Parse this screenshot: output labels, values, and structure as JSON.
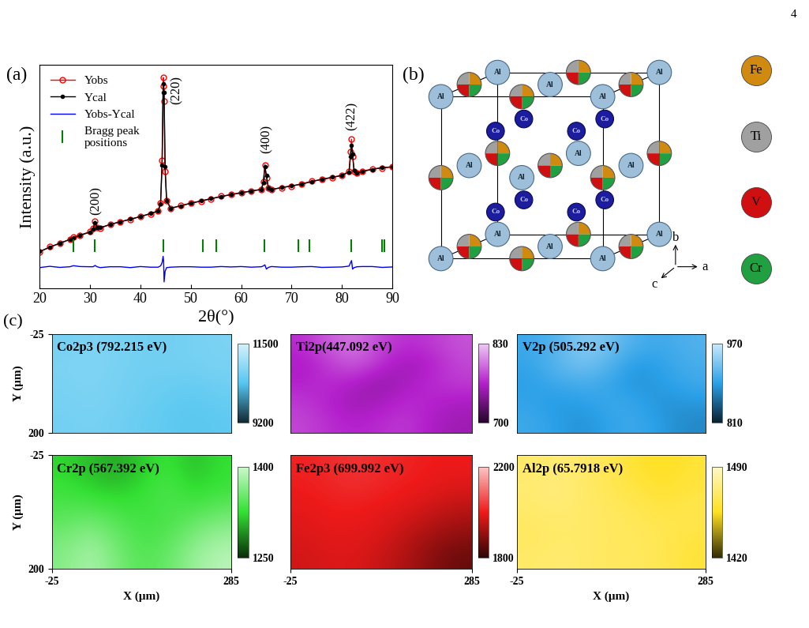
{
  "page": "4",
  "panel_labels": [
    "(a)",
    "(b)",
    "(c)"
  ],
  "chart_data": [
    {
      "type": "line",
      "xlabel": "2θ(°)",
      "ylabel": "Intensity (a.u.)",
      "xlim": [
        20,
        90
      ],
      "xticks": [
        20,
        30,
        40,
        50,
        60,
        70,
        80,
        90
      ],
      "ylim": [
        0,
        105
      ],
      "tick_labels": "x",
      "legend": "upper left",
      "x": [
        20,
        22,
        24,
        26,
        26.7,
        28,
        30,
        30.6,
        31,
        31.4,
        32,
        34,
        36,
        38,
        40,
        42,
        43.5,
        44.0,
        44.3,
        44.5,
        44.6,
        44.7,
        44.9,
        45.2,
        46,
        48,
        50,
        52,
        54,
        56,
        58,
        60,
        62,
        64,
        64.4,
        64.7,
        65.0,
        65.4,
        66,
        68,
        70,
        72,
        74,
        76,
        78,
        80,
        81.4,
        81.7,
        81.9,
        82.1,
        82.4,
        83,
        84,
        86,
        88,
        90
      ],
      "series": [
        {
          "name": "Yobs",
          "color": "#ff0000",
          "marker": "circle",
          "line_style": "solid",
          "values": [
            17,
            19.5,
            21,
            23,
            24.2,
            25,
            26.5,
            28,
            31.5,
            28.5,
            28.2,
            30,
            31.3,
            32.2,
            33.8,
            35,
            36.2,
            40,
            60,
            95,
            99,
            88,
            55,
            41,
            37.5,
            38.8,
            40,
            40.9,
            42,
            43.2,
            44,
            45,
            45.6,
            46.5,
            50,
            58,
            52,
            47,
            46.5,
            47.2,
            48,
            49,
            50.3,
            51,
            52,
            53,
            55,
            64,
            70,
            62,
            55,
            54.2,
            55,
            56,
            56.5,
            57
          ]
        },
        {
          "name": "Ycal",
          "color": "#000000",
          "marker": "dot",
          "line_style": "solid",
          "values": [
            17.3,
            19.2,
            21.2,
            22.9,
            23.6,
            24.8,
            26.4,
            27.9,
            30.8,
            28.4,
            28.5,
            29.9,
            31.2,
            32.5,
            33.6,
            35.1,
            36.3,
            39.5,
            58,
            92,
            96,
            92,
            57,
            41.3,
            37.6,
            38.7,
            39.9,
            41,
            42.1,
            43,
            44,
            44.8,
            45.7,
            46.4,
            49.5,
            57,
            53,
            47.2,
            46.3,
            47.3,
            48.1,
            48.9,
            50.1,
            51.2,
            52.1,
            53,
            54.6,
            62,
            67,
            63,
            55.3,
            54.1,
            54.8,
            55.8,
            56.7,
            57
          ]
        },
        {
          "name": "Yobs-Ycal",
          "color": "#0000ff",
          "line_style": "solid",
          "values": [
            9.7,
            10.3,
            9.8,
            10.1,
            10.6,
            10.2,
            10.1,
            10.1,
            10.7,
            10.1,
            9.7,
            10.1,
            10.1,
            9.7,
            10.2,
            9.9,
            9.9,
            10.5,
            12,
            15,
            13,
            3,
            8,
            9.7,
            9.9,
            10.1,
            10.1,
            9.9,
            9.9,
            10.2,
            10,
            10.2,
            9.9,
            10.1,
            10.5,
            11,
            9,
            9.8,
            10.2,
            9.9,
            9.9,
            10.1,
            10.2,
            9.8,
            9.9,
            10,
            10.4,
            12,
            13,
            9,
            9.7,
            10.1,
            10.2,
            10.2,
            9.8,
            10
          ]
        }
      ],
      "bragg_peaks": {
        "name": "Bragg peak\npositions",
        "color": "#008000",
        "x": [
          26.7,
          31.0,
          44.6,
          52.4,
          55.1,
          64.6,
          71.3,
          73.5,
          81.8,
          88.0,
          88.4
        ]
      },
      "annotations": [
        {
          "text": "(200)",
          "x": 31.2,
          "y": 41
        },
        {
          "text": "(220)",
          "x": 47.2,
          "y": 93
        },
        {
          "text": "(400)",
          "x": 65,
          "y": 70
        },
        {
          "text": "(422)",
          "x": 81.9,
          "y": 81
        }
      ]
    },
    {
      "type": "heatmap",
      "title": "Co2p3 (792.215 eV)",
      "ylabel": "Y (μm)",
      "tick_labels": "y",
      "xlim": [
        -25,
        285
      ],
      "ylim": [
        200,
        -25
      ],
      "xticks": [
        -25,
        285
      ],
      "yticks": [
        -25,
        200
      ],
      "color": "#55c6f0",
      "colorbar_range": [
        9200,
        11500
      ],
      "colorbar_ticks": [
        9200,
        11500
      ],
      "cells": [
        [
          10650,
          10700,
          10680,
          10620,
          10600,
          10650,
          10700
        ],
        [
          10700,
          10750,
          10680,
          10600,
          10620,
          10640,
          10680
        ],
        [
          10680,
          10720,
          10650,
          10580,
          10560,
          10500,
          10600
        ],
        [
          10650,
          10700,
          10640,
          10560,
          10480,
          10420,
          10500
        ],
        [
          10620,
          10660,
          10600,
          10520,
          10450,
          10380,
          10440
        ]
      ]
    },
    {
      "type": "heatmap",
      "title": "Ti2p(447.092 eV)",
      "tick_labels": false,
      "xlim": [
        -25,
        285
      ],
      "ylim": [
        200,
        -25
      ],
      "color": "#b420cc",
      "colorbar_range": [
        700,
        830
      ],
      "colorbar_ticks": [
        700,
        830
      ],
      "cells": [
        [
          770,
          790,
          800,
          780,
          770,
          775,
          785
        ],
        [
          760,
          775,
          790,
          770,
          755,
          765,
          780
        ],
        [
          765,
          770,
          760,
          750,
          760,
          770,
          775
        ],
        [
          775,
          765,
          755,
          760,
          770,
          765,
          760
        ],
        [
          780,
          770,
          765,
          770,
          775,
          760,
          755
        ]
      ]
    },
    {
      "type": "heatmap",
      "title": "V2p (505.292 eV)",
      "tick_labels": false,
      "xlim": [
        -25,
        285
      ],
      "ylim": [
        200,
        -25
      ],
      "color": "#2aa0e8",
      "colorbar_range": [
        810,
        970
      ],
      "colorbar_ticks": [
        810,
        970
      ],
      "cells": [
        [
          900,
          910,
          940,
          925,
          905,
          900,
          910
        ],
        [
          895,
          915,
          930,
          910,
          885,
          895,
          905
        ],
        [
          890,
          900,
          905,
          895,
          880,
          890,
          900
        ],
        [
          895,
          885,
          890,
          900,
          895,
          880,
          885
        ],
        [
          900,
          890,
          880,
          895,
          900,
          885,
          875
        ]
      ]
    },
    {
      "type": "heatmap",
      "title": "Cr2p (567.392 eV)",
      "xlabel": "X (μm)",
      "ylabel": "Y (μm)",
      "xlim": [
        -25,
        285
      ],
      "ylim": [
        200,
        -25
      ],
      "xticks": [
        -25,
        285
      ],
      "yticks": [
        -25,
        200
      ],
      "color": "#33e033",
      "colorbar_range": [
        1250,
        1400
      ],
      "colorbar_ticks": [
        1250,
        1400
      ],
      "cells": [
        [
          1320,
          1310,
          1300,
          1315,
          1330,
          1310,
          1325
        ],
        [
          1330,
          1320,
          1315,
          1325,
          1340,
          1320,
          1330
        ],
        [
          1340,
          1345,
          1335,
          1330,
          1335,
          1340,
          1350
        ],
        [
          1355,
          1370,
          1350,
          1335,
          1340,
          1360,
          1375
        ],
        [
          1365,
          1385,
          1360,
          1340,
          1350,
          1375,
          1390
        ]
      ]
    },
    {
      "type": "heatmap",
      "title": "Fe2p3 (699.992 eV)",
      "tick_labels": "x",
      "xlim": [
        -25,
        285
      ],
      "ylim": [
        200,
        -25
      ],
      "xticks": [
        -25,
        285
      ],
      "color": "#ee1a1a",
      "colorbar_range": [
        1800,
        2200
      ],
      "colorbar_ticks": [
        1800,
        2200
      ],
      "cells": [
        [
          2010,
          2020,
          2030,
          2020,
          2010,
          2000,
          2000
        ],
        [
          2000,
          2010,
          2020,
          2010,
          2000,
          1990,
          1980
        ],
        [
          1990,
          2000,
          2000,
          1990,
          1980,
          1960,
          1940
        ],
        [
          1980,
          1990,
          1990,
          1980,
          1950,
          1920,
          1900
        ],
        [
          1970,
          1980,
          1980,
          1960,
          1930,
          1890,
          1860
        ]
      ]
    },
    {
      "type": "heatmap",
      "title": "Al2p (65.7918 eV)",
      "xlabel": "X (μm)",
      "tick_labels": "x",
      "xlim": [
        -25,
        285
      ],
      "ylim": [
        200,
        -25
      ],
      "xticks": [
        -25,
        285
      ],
      "color": "#ffe020",
      "colorbar_range": [
        1420,
        1490
      ],
      "colorbar_ticks": [
        1420,
        1490
      ],
      "cells": [
        [
          1470,
          1472,
          1470,
          1465,
          1458,
          1455,
          1460
        ],
        [
          1472,
          1475,
          1470,
          1466,
          1462,
          1458,
          1462
        ],
        [
          1470,
          1472,
          1470,
          1468,
          1466,
          1463,
          1465
        ],
        [
          1468,
          1470,
          1470,
          1468,
          1467,
          1466,
          1462
        ],
        [
          1470,
          1472,
          1470,
          1468,
          1468,
          1465,
          1460
        ]
      ]
    }
  ],
  "diagram": {
    "sites": [
      {
        "label": "Al",
        "color": "#9ebfda"
      },
      {
        "label": "Co",
        "color": "#1c1c9e"
      }
    ],
    "mixed_site": [
      {
        "name": "Fe",
        "color": "#d08a10"
      },
      {
        "name": "Ti",
        "color": "#a0a0a0"
      },
      {
        "name": "V",
        "color": "#d01010"
      },
      {
        "name": "Cr",
        "color": "#20a040"
      }
    ],
    "axes": [
      "a",
      "b",
      "c"
    ]
  }
}
